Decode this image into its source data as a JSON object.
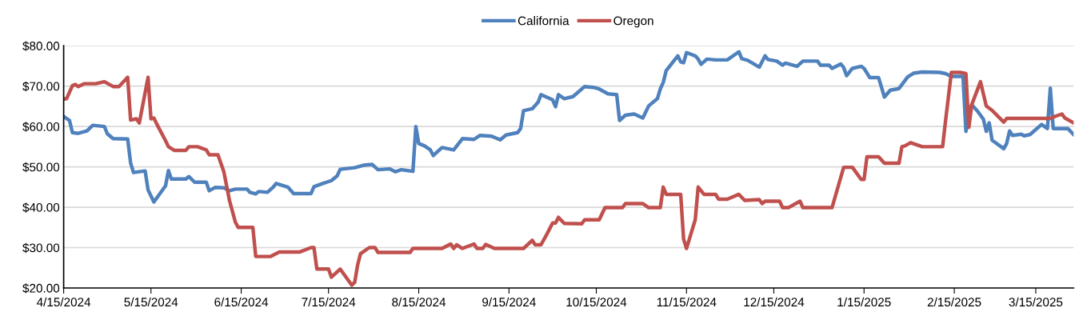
{
  "chart_data": {
    "type": "line",
    "xlim": [
      "2024-04-15",
      "2025-03-28"
    ],
    "xticks": [
      {
        "value": "2024-04-15",
        "label": "4/15/2024"
      },
      {
        "value": "2024-05-15",
        "label": "5/15/2024"
      },
      {
        "value": "2024-06-15",
        "label": "6/15/2024"
      },
      {
        "value": "2024-07-15",
        "label": "7/15/2024"
      },
      {
        "value": "2024-08-15",
        "label": "8/15/2024"
      },
      {
        "value": "2024-09-15",
        "label": "9/15/2024"
      },
      {
        "value": "2024-10-15",
        "label": "10/15/2024"
      },
      {
        "value": "2024-11-15",
        "label": "11/15/2024"
      },
      {
        "value": "2024-12-15",
        "label": "12/15/2024"
      },
      {
        "value": "2025-01-15",
        "label": "1/15/2025"
      },
      {
        "value": "2025-02-15",
        "label": "2/15/2025"
      },
      {
        "value": "2025-03-15",
        "label": "3/15/2025"
      }
    ],
    "ylim": [
      20,
      80
    ],
    "yticks": [
      {
        "value": 20,
        "label": "$20.00"
      },
      {
        "value": 30,
        "label": "$30.00"
      },
      {
        "value": 40,
        "label": "$40.00"
      },
      {
        "value": 50,
        "label": "$50.00"
      },
      {
        "value": 60,
        "label": "$60.00"
      },
      {
        "value": 70,
        "label": "$70.00"
      },
      {
        "value": 80,
        "label": "$80.00"
      }
    ],
    "grid": "y",
    "legend": "top",
    "marker": "none",
    "line_style": "solid",
    "series": [
      {
        "name": "California",
        "color": "#4f81bd",
        "x": [
          "2024-04-15",
          "2024-04-17",
          "2024-04-18",
          "2024-04-20",
          "2024-04-23",
          "2024-04-25",
          "2024-04-29",
          "2024-04-30",
          "2024-05-02",
          "2024-05-07",
          "2024-05-08",
          "2024-05-09",
          "2024-05-13",
          "2024-05-14",
          "2024-05-16",
          "2024-05-20",
          "2024-05-21",
          "2024-05-22",
          "2024-05-27",
          "2024-05-28",
          "2024-05-30",
          "2024-06-03",
          "2024-06-04",
          "2024-06-06",
          "2024-06-09",
          "2024-06-11",
          "2024-06-13",
          "2024-06-17",
          "2024-06-18",
          "2024-06-20",
          "2024-06-21",
          "2024-06-24",
          "2024-06-26",
          "2024-06-27",
          "2024-07-01",
          "2024-07-03",
          "2024-07-09",
          "2024-07-10",
          "2024-07-13",
          "2024-07-16",
          "2024-07-18",
          "2024-07-19",
          "2024-07-24",
          "2024-07-27",
          "2024-07-30",
          "2024-08-01",
          "2024-08-05",
          "2024-08-07",
          "2024-08-09",
          "2024-08-13",
          "2024-08-14",
          "2024-08-15",
          "2024-08-17",
          "2024-08-19",
          "2024-08-20",
          "2024-08-23",
          "2024-08-27",
          "2024-08-30",
          "2024-09-03",
          "2024-09-05",
          "2024-09-09",
          "2024-09-12",
          "2024-09-14",
          "2024-09-18",
          "2024-09-19",
          "2024-09-20",
          "2024-09-23",
          "2024-09-25",
          "2024-09-26",
          "2024-09-30",
          "2024-10-01",
          "2024-10-02",
          "2024-10-04",
          "2024-10-07",
          "2024-10-11",
          "2024-10-14",
          "2024-10-16",
          "2024-10-19",
          "2024-10-22",
          "2024-10-23",
          "2024-10-25",
          "2024-10-28",
          "2024-10-31",
          "2024-11-02",
          "2024-11-05",
          "2024-11-06",
          "2024-11-07",
          "2024-11-08",
          "2024-11-12",
          "2024-11-13",
          "2024-11-14",
          "2024-11-15",
          "2024-11-18",
          "2024-11-19",
          "2024-11-20",
          "2024-11-22",
          "2024-11-25",
          "2024-11-29",
          "2024-12-03",
          "2024-12-04",
          "2024-12-06",
          "2024-12-10",
          "2024-12-12",
          "2024-12-13",
          "2024-12-16",
          "2024-12-18",
          "2024-12-19",
          "2024-12-23",
          "2024-12-25",
          "2024-12-30",
          "2024-12-31",
          "2025-01-03",
          "2025-01-04",
          "2025-01-07",
          "2025-01-08",
          "2025-01-09",
          "2025-01-11",
          "2025-01-14",
          "2025-01-15",
          "2025-01-17",
          "2025-01-20",
          "2025-01-21",
          "2025-01-22",
          "2025-01-24",
          "2025-01-27",
          "2025-01-30",
          "2025-02-01",
          "2025-02-04",
          "2025-02-10",
          "2025-02-12",
          "2025-02-14",
          "2025-02-18",
          "2025-02-19",
          "2025-02-21",
          "2025-02-23",
          "2025-02-25",
          "2025-02-26",
          "2025-02-27",
          "2025-02-28",
          "2025-03-04",
          "2025-03-05",
          "2025-03-06",
          "2025-03-07",
          "2025-03-10",
          "2025-03-11",
          "2025-03-13",
          "2025-03-17",
          "2025-03-19",
          "2025-03-20",
          "2025-03-21",
          "2025-03-26",
          "2025-03-28"
        ],
        "values": [
          62.5,
          61.5,
          58.5,
          58.3,
          58.9,
          60.3,
          60,
          58.2,
          57,
          56.9,
          51,
          48.6,
          49,
          44.3,
          41.3,
          45.3,
          49.1,
          47,
          47,
          47.6,
          46.2,
          46.2,
          44.1,
          44.9,
          44.8,
          44.1,
          44.5,
          44.5,
          43.7,
          43.3,
          43.9,
          43.7,
          45,
          45.9,
          45,
          43.4,
          43.4,
          45.1,
          45.9,
          46.6,
          47.8,
          49.4,
          49.8,
          50.4,
          50.6,
          49.3,
          49.5,
          48.8,
          49.3,
          48.9,
          60,
          55.8,
          55.2,
          54.2,
          52.8,
          54.8,
          54.2,
          57,
          56.8,
          57.8,
          57.6,
          56.7,
          57.9,
          58.5,
          59.5,
          63.9,
          64.4,
          66,
          67.9,
          66.6,
          64.9,
          67.9,
          66.9,
          67.4,
          69.9,
          69.7,
          69.3,
          68.1,
          67.9,
          61.5,
          62.8,
          63.1,
          62.1,
          65.1,
          66.9,
          69.3,
          70.9,
          73.8,
          77.5,
          76,
          75.8,
          78.3,
          77.5,
          76.7,
          75.4,
          76.7,
          76.5,
          76.5,
          78.5,
          76.8,
          76.4,
          74.7,
          77.5,
          76.6,
          76.2,
          75.2,
          75.7,
          74.9,
          76.2,
          76.2,
          75.2,
          75.2,
          74.4,
          75.5,
          74.6,
          72.6,
          74.4,
          74.9,
          74.4,
          72.1,
          72.1,
          69.7,
          67.3,
          69,
          69.4,
          72.3,
          73.2,
          73.5,
          73.4,
          73.1,
          72.4,
          72.4,
          58.8,
          65.4,
          63.8,
          61.8,
          58.8,
          60.9,
          56.6,
          54.5,
          55.8,
          58.9,
          57.8,
          58.1,
          57.7,
          58,
          60.5,
          59.5,
          69.5,
          59.5,
          59.5,
          58
        ]
      },
      {
        "name": "Oregon",
        "color": "#c0504d",
        "x": [
          "2024-04-15",
          "2024-04-16",
          "2024-04-18",
          "2024-04-19",
          "2024-04-20",
          "2024-04-22",
          "2024-04-26",
          "2024-04-29",
          "2024-05-02",
          "2024-05-04",
          "2024-05-07",
          "2024-05-08",
          "2024-05-10",
          "2024-05-11",
          "2024-05-14",
          "2024-05-15",
          "2024-05-16",
          "2024-05-17",
          "2024-05-20",
          "2024-05-21",
          "2024-05-23",
          "2024-05-27",
          "2024-05-28",
          "2024-05-31",
          "2024-06-03",
          "2024-06-04",
          "2024-06-07",
          "2024-06-09",
          "2024-06-11",
          "2024-06-13",
          "2024-06-14",
          "2024-06-19",
          "2024-06-20",
          "2024-06-25",
          "2024-06-27",
          "2024-06-28",
          "2024-07-05",
          "2024-07-09",
          "2024-07-10",
          "2024-07-11",
          "2024-07-15",
          "2024-07-16",
          "2024-07-19",
          "2024-07-23",
          "2024-07-24",
          "2024-07-25",
          "2024-07-26",
          "2024-07-29",
          "2024-07-31",
          "2024-08-01",
          "2024-08-12",
          "2024-08-13",
          "2024-08-23",
          "2024-08-26",
          "2024-08-27",
          "2024-08-28",
          "2024-08-30",
          "2024-09-03",
          "2024-09-04",
          "2024-09-06",
          "2024-09-07",
          "2024-09-10",
          "2024-09-20",
          "2024-09-23",
          "2024-09-24",
          "2024-09-26",
          "2024-09-28",
          "2024-09-30",
          "2024-10-01",
          "2024-10-02",
          "2024-10-04",
          "2024-10-10",
          "2024-10-11",
          "2024-10-16",
          "2024-10-18",
          "2024-10-24",
          "2024-10-25",
          "2024-10-31",
          "2024-11-02",
          "2024-11-06",
          "2024-11-07",
          "2024-11-08",
          "2024-11-13",
          "2024-11-14",
          "2024-11-15",
          "2024-11-18",
          "2024-11-19",
          "2024-11-21",
          "2024-11-25",
          "2024-11-26",
          "2024-11-29",
          "2024-12-03",
          "2024-12-05",
          "2024-12-10",
          "2024-12-11",
          "2024-12-12",
          "2024-12-17",
          "2024-12-18",
          "2024-12-20",
          "2024-12-24",
          "2024-12-25",
          "2025-01-04",
          "2025-01-08",
          "2025-01-11",
          "2025-01-14",
          "2025-01-15",
          "2025-01-16",
          "2025-01-20",
          "2025-01-22",
          "2025-01-27",
          "2025-01-28",
          "2025-01-29",
          "2025-01-31",
          "2025-02-04",
          "2025-02-11",
          "2025-02-12",
          "2025-02-14",
          "2025-02-17",
          "2025-02-19",
          "2025-02-20",
          "2025-02-21",
          "2025-02-24",
          "2025-02-26",
          "2025-02-28",
          "2025-03-04",
          "2025-03-05",
          "2025-03-20",
          "2025-03-22",
          "2025-03-24",
          "2025-03-25",
          "2025-03-28"
        ],
        "values": [
          66.8,
          66.9,
          70.1,
          70.4,
          69.9,
          70.6,
          70.6,
          71.1,
          69.9,
          69.9,
          72.2,
          61.6,
          61.9,
          60.9,
          72.2,
          61.9,
          62.1,
          60.6,
          56.5,
          55,
          54.1,
          54.1,
          55,
          55,
          54.2,
          53,
          53,
          48.9,
          41.6,
          36.3,
          35,
          35,
          27.8,
          27.8,
          28.5,
          28.9,
          28.9,
          30,
          30,
          24.7,
          24.7,
          22.7,
          24.7,
          20.7,
          21.4,
          25.7,
          28.5,
          30,
          30,
          28.8,
          28.8,
          29.8,
          29.8,
          30.9,
          29.8,
          30.7,
          29.8,
          30.9,
          29.8,
          29.8,
          30.8,
          29.8,
          29.8,
          31.8,
          30.7,
          30.7,
          33.3,
          36.1,
          36.1,
          37.5,
          36,
          35.9,
          36.9,
          36.9,
          39.9,
          39.9,
          40.9,
          40.9,
          39.9,
          39.9,
          45,
          43.2,
          43.2,
          32.1,
          29.8,
          36.9,
          45,
          43.2,
          43.2,
          42,
          42,
          43.2,
          41.7,
          41.9,
          40.9,
          41.5,
          41.5,
          39.9,
          39.9,
          41.5,
          39.9,
          39.9,
          49.9,
          49.9,
          46.9,
          46.9,
          52.5,
          52.5,
          50.9,
          50.9,
          55,
          55.2,
          56,
          55,
          55,
          61.4,
          73.4,
          73.4,
          73.1,
          59.8,
          65.4,
          71.1,
          65.1,
          64,
          61.1,
          62,
          62,
          62.6,
          63.1,
          62.1,
          60.9
        ]
      }
    ]
  }
}
